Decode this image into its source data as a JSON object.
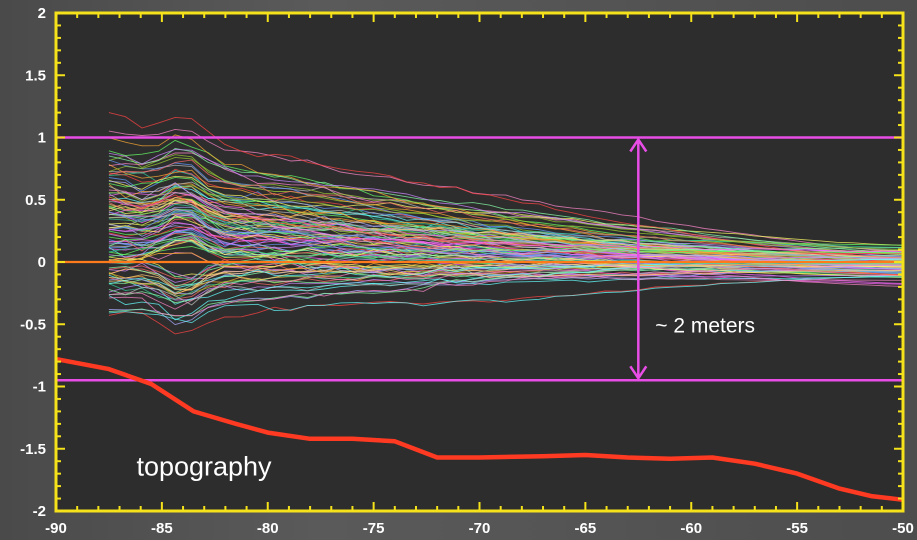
{
  "chart_data": {
    "type": "line",
    "title": "",
    "xlabel": "",
    "ylabel": "",
    "xlim": [
      -90,
      -50
    ],
    "ylim": [
      -2,
      2
    ],
    "x_ticks": [
      -90,
      -85,
      -80,
      -75,
      -70,
      -65,
      -60,
      -55,
      -50
    ],
    "y_ticks": [
      -2,
      -1.5,
      -1,
      -0.5,
      0,
      0.5,
      1,
      1.5,
      2
    ],
    "x_tick_labels": [
      "-90",
      "-85",
      "-80",
      "-75",
      "-70",
      "-65",
      "-60",
      "-55",
      "-50"
    ],
    "y_tick_labels": [
      "-2",
      "-1.5",
      "-1",
      "-0.5",
      "0",
      "0.5",
      "1",
      "1.5",
      "2"
    ],
    "grid": false,
    "colors": {
      "plot_background": "#2d2d2d",
      "frame": "#f5e21a",
      "topography": "#ff3a22",
      "reference_lines": "#e84de6",
      "zero_line": "#ff7a1a"
    },
    "ensemble": {
      "description_visible": false,
      "x_start": -87.5,
      "x_end": -50,
      "spread_at_start": [
        -0.7,
        1.2
      ],
      "spread_at_end": [
        -0.03,
        0.03
      ],
      "palette": [
        "#ff6b6b",
        "#66ff66",
        "#6699ff",
        "#ffff66",
        "#ff66ff",
        "#66ffff",
        "#ffaa33",
        "#cc88ff",
        "#88ffaa",
        "#ff88cc",
        "#aaaaff",
        "#ffd27f",
        "#bbbbbb",
        "#33cc99",
        "#ff4444",
        "#99cc33"
      ]
    },
    "topography": {
      "x": [
        -90,
        -87.5,
        -85.5,
        -83.5,
        -81.5,
        -80,
        -78,
        -76,
        -74,
        -72,
        -70,
        -67,
        -65,
        -63,
        -61,
        -59,
        -57,
        -55,
        -53,
        -51.5,
        -50
      ],
      "y": [
        -0.78,
        -0.86,
        -0.98,
        -1.2,
        -1.3,
        -1.37,
        -1.42,
        -1.42,
        -1.44,
        -1.57,
        -1.57,
        -1.56,
        -1.55,
        -1.57,
        -1.58,
        -1.57,
        -1.62,
        -1.7,
        -1.82,
        -1.88,
        -1.91
      ]
    },
    "reference_lines": [
      {
        "y": 1.0,
        "color": "#e84de6"
      },
      {
        "y": -0.95,
        "color": "#e84de6"
      }
    ],
    "zero_line": {
      "y": 0,
      "color": "#ff7a1a"
    },
    "range_arrow": {
      "x": -62.5,
      "y_from": -0.95,
      "y_to": 1.0,
      "color": "#e84de6"
    },
    "annotations": [
      {
        "text": "~ 2 meters",
        "x": -61.7,
        "y": -0.5
      },
      {
        "text": "topography",
        "x": -86.2,
        "y": -1.65
      }
    ]
  }
}
